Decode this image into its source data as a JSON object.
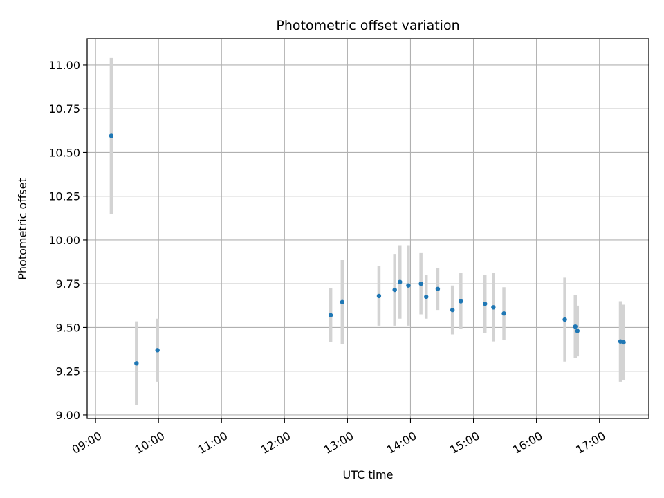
{
  "chart_data": {
    "type": "scatter",
    "title": "Photometric offset variation",
    "xlabel": "UTC time",
    "ylabel": "Photometric offset",
    "x_axis": {
      "kind": "time",
      "range": [
        "08:52",
        "17:47"
      ],
      "ticks": [
        "09:00",
        "10:00",
        "11:00",
        "12:00",
        "13:00",
        "14:00",
        "15:00",
        "16:00",
        "17:00"
      ]
    },
    "y_axis": {
      "range": [
        8.98,
        11.15
      ],
      "ticks": [
        "9.00",
        "9.25",
        "9.50",
        "9.75",
        "10.00",
        "10.25",
        "10.50",
        "10.75",
        "11.00"
      ]
    },
    "grid": true,
    "legend": "none",
    "colors": {
      "point": "#1f77b4",
      "error_bar": "#d3d3d3",
      "grid": "#b0b0b0"
    },
    "points": [
      {
        "time": "09:15",
        "y": 10.595,
        "err": 0.445
      },
      {
        "time": "09:39",
        "y": 9.295,
        "err": 0.24
      },
      {
        "time": "09:59",
        "y": 9.37,
        "err": 0.18
      },
      {
        "time": "12:44",
        "y": 9.57,
        "err": 0.155
      },
      {
        "time": "12:55",
        "y": 9.645,
        "err": 0.24
      },
      {
        "time": "13:30",
        "y": 9.68,
        "err": 0.17
      },
      {
        "time": "13:45",
        "y": 9.715,
        "err": 0.205
      },
      {
        "time": "13:50",
        "y": 9.76,
        "err": 0.21
      },
      {
        "time": "13:58",
        "y": 9.74,
        "err": 0.23
      },
      {
        "time": "14:10",
        "y": 9.75,
        "err": 0.175
      },
      {
        "time": "14:15",
        "y": 9.675,
        "err": 0.125
      },
      {
        "time": "14:26",
        "y": 9.72,
        "err": 0.12
      },
      {
        "time": "14:40",
        "y": 9.6,
        "err": 0.14
      },
      {
        "time": "14:48",
        "y": 9.65,
        "err": 0.16
      },
      {
        "time": "15:11",
        "y": 9.635,
        "err": 0.165
      },
      {
        "time": "15:19",
        "y": 9.615,
        "err": 0.195
      },
      {
        "time": "15:29",
        "y": 9.58,
        "err": 0.15
      },
      {
        "time": "16:27",
        "y": 9.545,
        "err": 0.24
      },
      {
        "time": "16:37",
        "y": 9.505,
        "err": 0.18
      },
      {
        "time": "16:39",
        "y": 9.48,
        "err": 0.145
      },
      {
        "time": "17:20",
        "y": 9.42,
        "err": 0.23
      },
      {
        "time": "17:23",
        "y": 9.415,
        "err": 0.215
      }
    ]
  }
}
